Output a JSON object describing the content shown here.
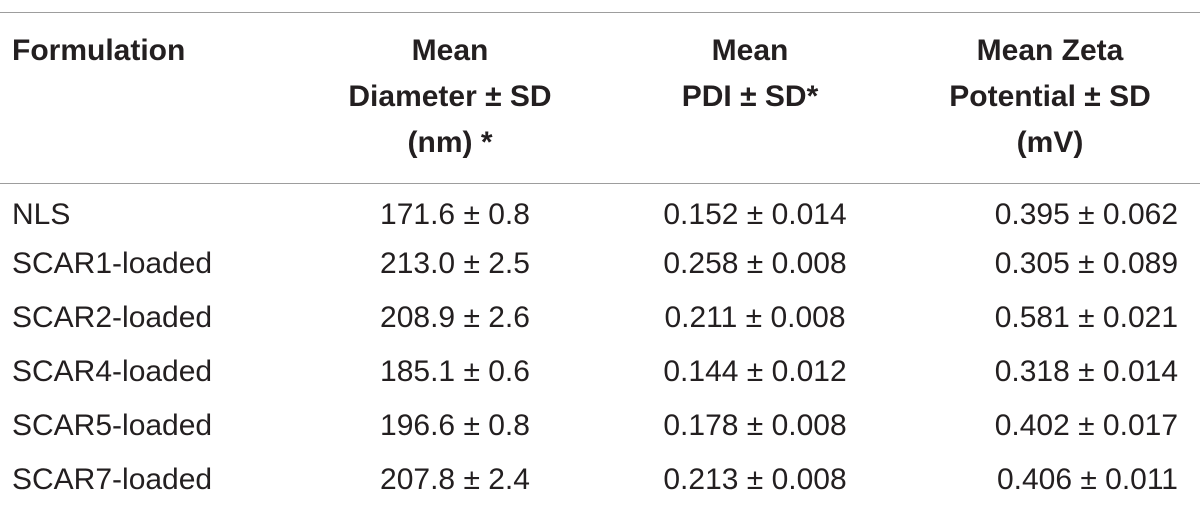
{
  "table": {
    "headers": [
      "Formulation",
      "Mean\nDiameter ± SD\n(nm) *",
      "Mean\nPDI ± SD*",
      "Mean Zeta\nPotential ± SD\n(mV)"
    ],
    "rows": [
      [
        "NLS",
        "171.6 ± 0.8",
        "0.152 ± 0.014",
        "0.395 ± 0.062"
      ],
      [
        "SCAR1-loaded",
        "213.0 ± 2.5",
        "0.258 ± 0.008",
        "0.305 ± 0.089"
      ],
      [
        "SCAR2-loaded",
        "208.9 ± 2.6",
        "0.211 ± 0.008",
        "0.581 ± 0.021"
      ],
      [
        "SCAR4-loaded",
        "185.1 ± 0.6",
        "0.144 ± 0.012",
        "0.318 ± 0.014"
      ],
      [
        "SCAR5-loaded",
        "196.6 ± 0.8",
        "0.178 ± 0.008",
        "0.402 ± 0.017"
      ],
      [
        "SCAR7-loaded",
        "207.8 ± 2.4",
        "0.213 ± 0.008",
        "0.406 ± 0.011"
      ]
    ]
  },
  "colors": {
    "text": "#231f20",
    "rule": "#9d9d9d",
    "background": "#ffffff"
  }
}
